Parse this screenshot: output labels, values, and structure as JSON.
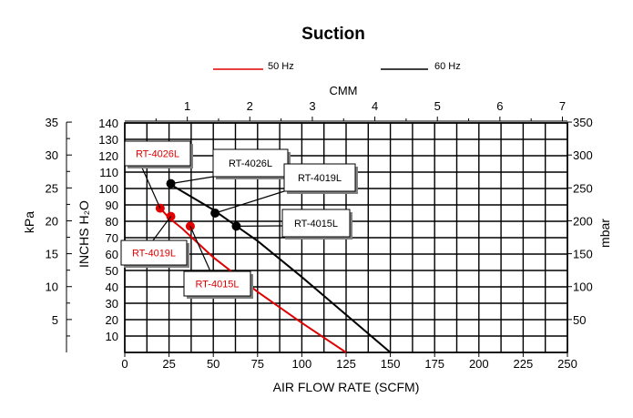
{
  "chart_data": {
    "type": "line",
    "title": "Suction",
    "xlabel": "AIR FLOW RATE (SCFM)",
    "x_top_label": "CMM",
    "y_left_outer_label": "kPa",
    "y_left_inner_label": "INCHS H₂O",
    "y_right_label": "mbar",
    "xlim": [
      0,
      250
    ],
    "ylim": [
      0,
      140
    ],
    "x_ticks": [
      "0",
      "25",
      "50",
      "75",
      "100",
      "125",
      "150",
      "175",
      "200",
      "225",
      "250"
    ],
    "x_top_ticks": [
      "1",
      "2",
      "3",
      "4",
      "5",
      "6",
      "7"
    ],
    "y_inner_ticks": [
      "10",
      "20",
      "30",
      "40",
      "50",
      "60",
      "70",
      "80",
      "90",
      "100",
      "110",
      "120",
      "130",
      "140"
    ],
    "y_kpa_ticks": [
      "5",
      "10",
      "15",
      "20",
      "25",
      "30",
      "35"
    ],
    "y_mbar_ticks": [
      "50",
      "100",
      "150",
      "200",
      "250",
      "300",
      "350"
    ],
    "grid": true,
    "legend_position": "top",
    "series": [
      {
        "name": "50 Hz",
        "color": "#e00000",
        "points": [
          [
            20,
            88
          ],
          [
            25,
            82
          ],
          [
            32,
            76
          ],
          [
            50,
            58
          ],
          [
            75,
            37
          ],
          [
            100,
            18
          ],
          [
            125,
            0
          ]
        ],
        "markers": [
          {
            "x": 20,
            "y": 88,
            "label": "RT-4026L"
          },
          {
            "x": 26,
            "y": 83,
            "label": "RT-4019L"
          },
          {
            "x": 37,
            "y": 77,
            "label": "RT-4015L"
          }
        ]
      },
      {
        "name": "60 Hz",
        "color": "#000000",
        "points": [
          [
            25,
            103
          ],
          [
            50,
            87
          ],
          [
            75,
            68
          ],
          [
            100,
            46
          ],
          [
            125,
            23
          ],
          [
            150,
            0
          ]
        ],
        "markers": [
          {
            "x": 26,
            "y": 103,
            "label": "RT-4026L"
          },
          {
            "x": 51,
            "y": 85,
            "label": "RT-4019L"
          },
          {
            "x": 63,
            "y": 77,
            "label": "RT-4015L"
          }
        ]
      }
    ]
  }
}
